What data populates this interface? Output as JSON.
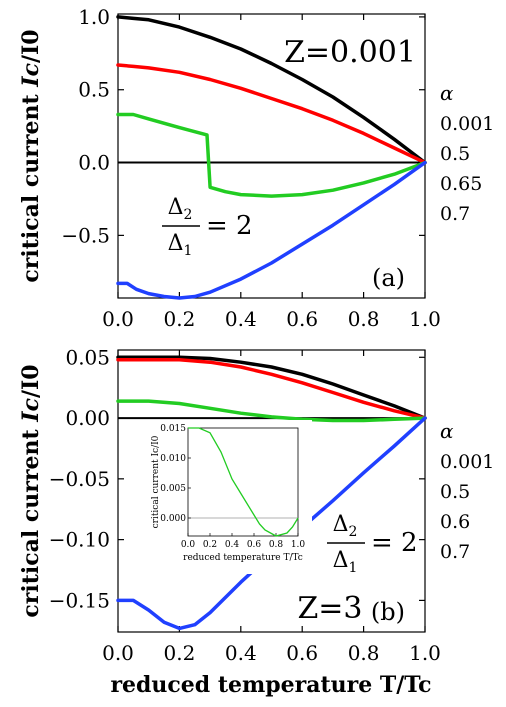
{
  "xlabel": "reduced temperature T/Tc",
  "legend_title": "α",
  "chart_data": [
    {
      "type": "line",
      "panel_label": "(a)",
      "annotation": "Z=0.001",
      "ratio_numerator": "Δ",
      "ratio_numerator_sub": "2",
      "ratio_denominator": "Δ",
      "ratio_denominator_sub": "1",
      "ratio_value": "= 2",
      "ylabel_prefix": "critical current ",
      "ylabel_italic": "Ic",
      "ylabel_suffix": "/I0",
      "xlim": [
        0,
        1
      ],
      "ylim": [
        -0.93,
        1.02
      ],
      "xticks": [
        "0.0",
        "0.2",
        "0.4",
        "0.6",
        "0.8",
        "1.0"
      ],
      "xtick_values": [
        0,
        0.2,
        0.4,
        0.6,
        0.8,
        1.0
      ],
      "yticks": [
        "1.0",
        "0.5",
        "0.0",
        "−0.5"
      ],
      "ytick_values": [
        1.0,
        0.5,
        0.0,
        -0.5
      ],
      "legend": [
        "0.001",
        "0.5",
        "0.65",
        "0.7"
      ],
      "series": [
        {
          "name": "0.001",
          "color": "#000000",
          "x": [
            0,
            0.05,
            0.1,
            0.2,
            0.3,
            0.4,
            0.5,
            0.6,
            0.7,
            0.8,
            0.9,
            1.0
          ],
          "y": [
            1.0,
            0.99,
            0.98,
            0.93,
            0.86,
            0.78,
            0.68,
            0.57,
            0.45,
            0.31,
            0.16,
            0.0
          ]
        },
        {
          "name": "0.5",
          "color": "#ff0000",
          "x": [
            0,
            0.05,
            0.1,
            0.2,
            0.3,
            0.4,
            0.5,
            0.6,
            0.7,
            0.8,
            0.9,
            1.0
          ],
          "y": [
            0.67,
            0.66,
            0.65,
            0.62,
            0.57,
            0.51,
            0.44,
            0.37,
            0.29,
            0.2,
            0.1,
            0.0
          ]
        },
        {
          "name": "0.65",
          "color": "#22cc22",
          "x": [
            0,
            0.05,
            0.1,
            0.2,
            0.29,
            0.3,
            0.35,
            0.4,
            0.5,
            0.6,
            0.7,
            0.8,
            0.9,
            1.0
          ],
          "y": [
            0.33,
            0.33,
            0.3,
            0.24,
            0.19,
            -0.17,
            -0.2,
            -0.22,
            -0.23,
            -0.22,
            -0.19,
            -0.14,
            -0.08,
            0.0
          ]
        },
        {
          "name": "0.7",
          "color": "#2040ff",
          "x": [
            0,
            0.03,
            0.06,
            0.1,
            0.15,
            0.2,
            0.25,
            0.3,
            0.4,
            0.5,
            0.6,
            0.7,
            0.8,
            0.9,
            1.0
          ],
          "y": [
            -0.83,
            -0.83,
            -0.87,
            -0.9,
            -0.92,
            -0.93,
            -0.92,
            -0.89,
            -0.8,
            -0.69,
            -0.56,
            -0.43,
            -0.29,
            -0.15,
            0.0
          ]
        }
      ]
    },
    {
      "type": "line",
      "panel_label": "(b)",
      "annotation": "Z=3",
      "ratio_numerator": "Δ",
      "ratio_numerator_sub": "2",
      "ratio_denominator": "Δ",
      "ratio_denominator_sub": "1",
      "ratio_value": "= 2",
      "ylabel_prefix": "critical current ",
      "ylabel_italic": "Ic",
      "ylabel_suffix": "/I0",
      "xlim": [
        0,
        1
      ],
      "ylim": [
        -0.176,
        0.056
      ],
      "xticks": [
        "0.0",
        "0.2",
        "0.4",
        "0.6",
        "0.8",
        "1.0"
      ],
      "xtick_values": [
        0,
        0.2,
        0.4,
        0.6,
        0.8,
        1.0
      ],
      "yticks": [
        "0.05",
        "0.00",
        "−0.05",
        "−0.10",
        "−0.15"
      ],
      "ytick_values": [
        0.05,
        0.0,
        -0.05,
        -0.1,
        -0.15
      ],
      "legend": [
        "0.001",
        "0.5",
        "0.6",
        "0.7"
      ],
      "series": [
        {
          "name": "0.001",
          "color": "#000000",
          "x": [
            0,
            0.1,
            0.2,
            0.3,
            0.4,
            0.5,
            0.6,
            0.7,
            0.8,
            0.9,
            1.0
          ],
          "y": [
            0.05,
            0.05,
            0.05,
            0.049,
            0.046,
            0.042,
            0.036,
            0.028,
            0.019,
            0.01,
            0.0
          ]
        },
        {
          "name": "0.5",
          "color": "#ff0000",
          "x": [
            0,
            0.1,
            0.2,
            0.3,
            0.4,
            0.5,
            0.6,
            0.7,
            0.8,
            0.9,
            1.0
          ],
          "y": [
            0.048,
            0.048,
            0.048,
            0.046,
            0.042,
            0.036,
            0.029,
            0.021,
            0.013,
            0.006,
            0.0
          ]
        },
        {
          "name": "0.6",
          "color": "#22cc22",
          "x": [
            0,
            0.1,
            0.2,
            0.3,
            0.4,
            0.5,
            0.6,
            0.7,
            0.8,
            0.9,
            1.0
          ],
          "y": [
            0.014,
            0.014,
            0.012,
            0.008,
            0.004,
            0.001,
            -0.001,
            -0.002,
            -0.002,
            -0.001,
            0.0
          ]
        },
        {
          "name": "0.7",
          "color": "#2040ff",
          "x": [
            0,
            0.05,
            0.1,
            0.15,
            0.2,
            0.25,
            0.3,
            0.4,
            0.5,
            0.6,
            0.7,
            0.8,
            0.9,
            1.0
          ],
          "y": [
            -0.15,
            -0.15,
            -0.158,
            -0.168,
            -0.173,
            -0.17,
            -0.16,
            -0.135,
            -0.112,
            -0.09,
            -0.068,
            -0.045,
            -0.023,
            0.0
          ]
        }
      ],
      "inset": {
        "type": "line",
        "xlabel": "reduced temperature T/Tc",
        "ylabel": "critical current Ic/I0",
        "xlim": [
          0,
          1
        ],
        "ylim": [
          -0.003,
          0.015
        ],
        "xticks": [
          "0.0",
          "0.2",
          "0.4",
          "0.6",
          "0.8",
          "1.0"
        ],
        "xtick_values": [
          0,
          0.2,
          0.4,
          0.6,
          0.8,
          1.0
        ],
        "yticks": [
          "0.015",
          "0.010",
          "0.005",
          "0.000"
        ],
        "ytick_values": [
          0.015,
          0.01,
          0.005,
          0.0
        ],
        "series": [
          {
            "name": "0.6",
            "color": "#22cc22",
            "x": [
              0,
              0.1,
              0.2,
              0.3,
              0.4,
              0.5,
              0.6,
              0.65,
              0.7,
              0.8,
              0.9,
              0.95,
              1.0
            ],
            "y": [
              0.015,
              0.015,
              0.0142,
              0.011,
              0.0065,
              0.0035,
              0.0005,
              -0.001,
              -0.002,
              -0.003,
              -0.0025,
              -0.0015,
              0.0
            ]
          }
        ]
      }
    }
  ]
}
